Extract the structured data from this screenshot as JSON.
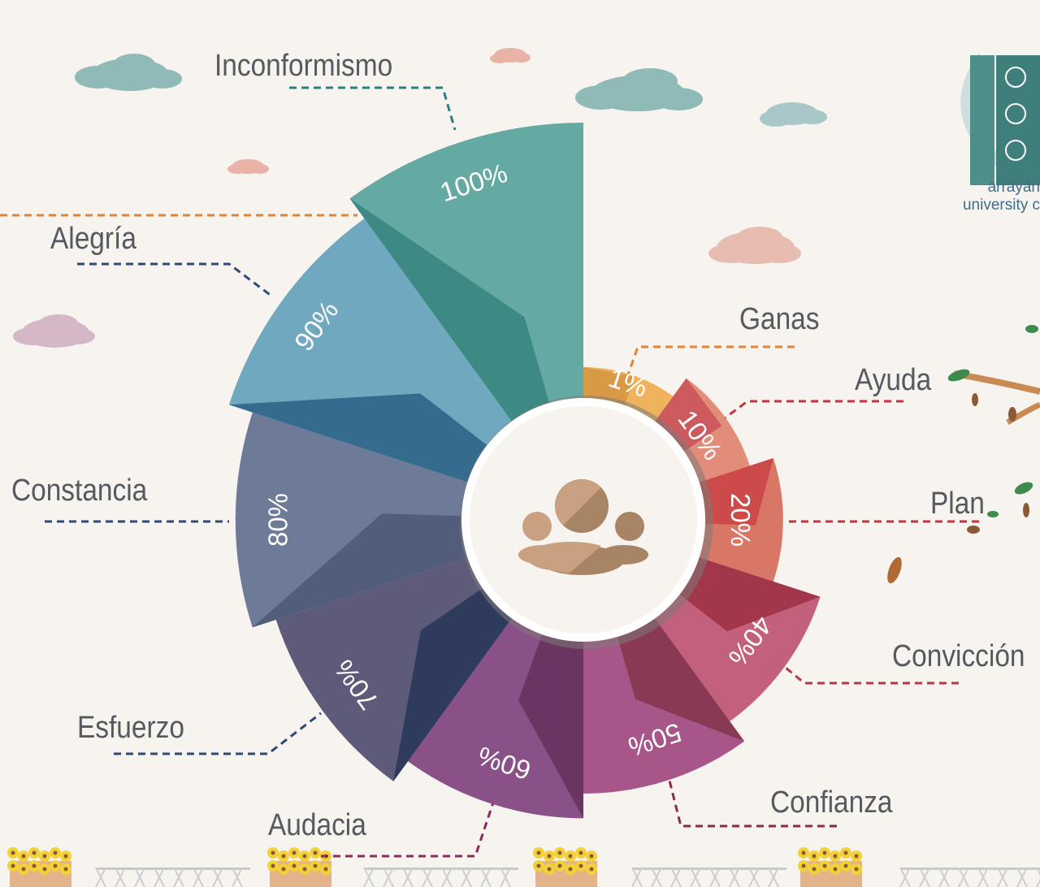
{
  "chart_data": {
    "type": "pie",
    "variant": "rose",
    "categories": [
      "Ganas",
      "Ayuda",
      "Plan",
      "Convicción",
      "Confianza",
      "Audacia",
      "Esfuerzo",
      "Constancia",
      "Alegría",
      "Inconformismo"
    ],
    "values": [
      1,
      10,
      20,
      40,
      50,
      60,
      70,
      80,
      90,
      100
    ],
    "value_labels": [
      "1%",
      "10%",
      "20%",
      "40%",
      "50%",
      "60%",
      "70%",
      "80%",
      "90%",
      "100%"
    ],
    "colors": [
      "#eeb35c",
      "#e28c7a",
      "#d97766",
      "#c3607c",
      "#a8568a",
      "#8a5088",
      "#5d5a7a",
      "#6e7b98",
      "#70a9bf",
      "#64aaa3"
    ],
    "dark_colors": [
      "#d99a46",
      "#cc5a5e",
      "#cc4a4a",
      "#a2374c",
      "#8a3955",
      "#6a3560",
      "#2f3b5c",
      "#525d7c",
      "#356b8c",
      "#3d8a85"
    ],
    "leader_colors": [
      "#e0843a",
      "#c4343c",
      "#c4343c",
      "#b03a48",
      "#8a2c44",
      "#8a2c5a",
      "#2e4a78",
      "#2e4a78",
      "#2e4a78",
      "#2d7f86"
    ]
  },
  "logo": {
    "line1": "arrayán",
    "line2": "university c"
  }
}
